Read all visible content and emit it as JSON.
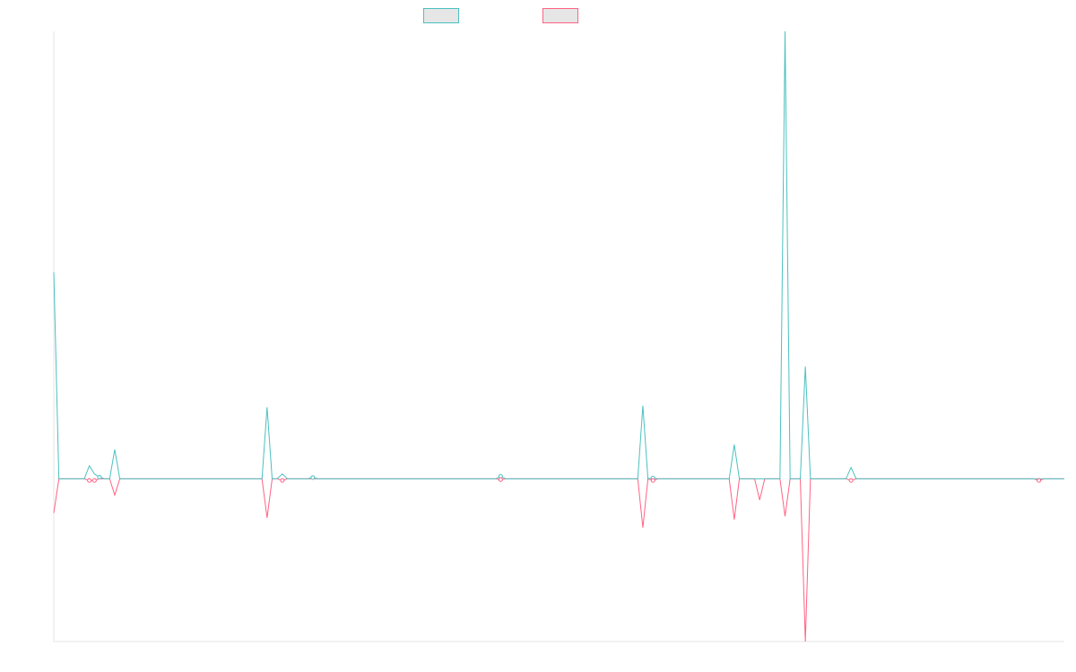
{
  "chart_data": {
    "type": "line",
    "title": "",
    "xlabel": "",
    "ylabel": "",
    "ylim": [
      -100,
      275
    ],
    "grid": false,
    "legend": "top-center",
    "points": 200,
    "series": [
      {
        "name": "",
        "color": "#4bc0c0",
        "fill": "#e6e6e6",
        "values": [
          {
            "i": 0,
            "v": 127
          },
          {
            "i": 1,
            "v": 0
          },
          {
            "i": 6,
            "v": 0
          },
          {
            "i": 7,
            "v": 8
          },
          {
            "i": 8,
            "v": 3
          },
          {
            "i": 9,
            "v": 1
          },
          {
            "i": 10,
            "v": 0
          },
          {
            "i": 11,
            "v": 0
          },
          {
            "i": 12,
            "v": 18
          },
          {
            "i": 13,
            "v": 0
          },
          {
            "i": 41,
            "v": 0
          },
          {
            "i": 42,
            "v": 44
          },
          {
            "i": 43,
            "v": 0
          },
          {
            "i": 44,
            "v": 0
          },
          {
            "i": 45,
            "v": 3
          },
          {
            "i": 46,
            "v": 0
          },
          {
            "i": 50,
            "v": 0
          },
          {
            "i": 51,
            "v": 0.8
          },
          {
            "i": 52,
            "v": 0
          },
          {
            "i": 87,
            "v": 0
          },
          {
            "i": 88,
            "v": 1.5
          },
          {
            "i": 89,
            "v": 0
          },
          {
            "i": 115,
            "v": 0
          },
          {
            "i": 116,
            "v": 45
          },
          {
            "i": 117,
            "v": 0
          },
          {
            "i": 118,
            "v": 0.5
          },
          {
            "i": 119,
            "v": 0
          },
          {
            "i": 133,
            "v": 0
          },
          {
            "i": 134,
            "v": 21
          },
          {
            "i": 135,
            "v": 0
          },
          {
            "i": 143,
            "v": 0
          },
          {
            "i": 144,
            "v": 275
          },
          {
            "i": 145,
            "v": 0
          },
          {
            "i": 147,
            "v": 0
          },
          {
            "i": 148,
            "v": 69
          },
          {
            "i": 149,
            "v": 0
          },
          {
            "i": 156,
            "v": 0
          },
          {
            "i": 157,
            "v": 7
          },
          {
            "i": 158,
            "v": 0
          },
          {
            "i": 199,
            "v": 0
          }
        ]
      },
      {
        "name": "",
        "color": "#ff6384",
        "fill": "#e6e6e6",
        "values": [
          {
            "i": 0,
            "v": -21
          },
          {
            "i": 1,
            "v": 0
          },
          {
            "i": 6,
            "v": 0
          },
          {
            "i": 7,
            "v": -1
          },
          {
            "i": 8,
            "v": -1
          },
          {
            "i": 9,
            "v": 0
          },
          {
            "i": 11,
            "v": 0
          },
          {
            "i": 12,
            "v": -10
          },
          {
            "i": 13,
            "v": 0
          },
          {
            "i": 41,
            "v": 0
          },
          {
            "i": 42,
            "v": -24
          },
          {
            "i": 43,
            "v": 0
          },
          {
            "i": 44,
            "v": 0
          },
          {
            "i": 45,
            "v": -1
          },
          {
            "i": 46,
            "v": 0
          },
          {
            "i": 87,
            "v": 0
          },
          {
            "i": 88,
            "v": -0.5
          },
          {
            "i": 89,
            "v": 0
          },
          {
            "i": 115,
            "v": 0
          },
          {
            "i": 116,
            "v": -30
          },
          {
            "i": 117,
            "v": 0
          },
          {
            "i": 118,
            "v": -1
          },
          {
            "i": 119,
            "v": 0
          },
          {
            "i": 133,
            "v": 0
          },
          {
            "i": 134,
            "v": -25
          },
          {
            "i": 135,
            "v": 0
          },
          {
            "i": 138,
            "v": 0
          },
          {
            "i": 139,
            "v": -13
          },
          {
            "i": 140,
            "v": 0
          },
          {
            "i": 142,
            "v": 0
          },
          {
            "i": 143,
            "v": 0
          },
          {
            "i": 144,
            "v": -23
          },
          {
            "i": 145,
            "v": 0
          },
          {
            "i": 147,
            "v": 0
          },
          {
            "i": 148,
            "v": -100
          },
          {
            "i": 149,
            "v": 0
          },
          {
            "i": 156,
            "v": 0
          },
          {
            "i": 157,
            "v": -1
          },
          {
            "i": 158,
            "v": 0
          },
          {
            "i": 193,
            "v": 0
          },
          {
            "i": 194,
            "v": -1
          },
          {
            "i": 195,
            "v": 0
          },
          {
            "i": 199,
            "v": 0
          }
        ]
      }
    ]
  }
}
